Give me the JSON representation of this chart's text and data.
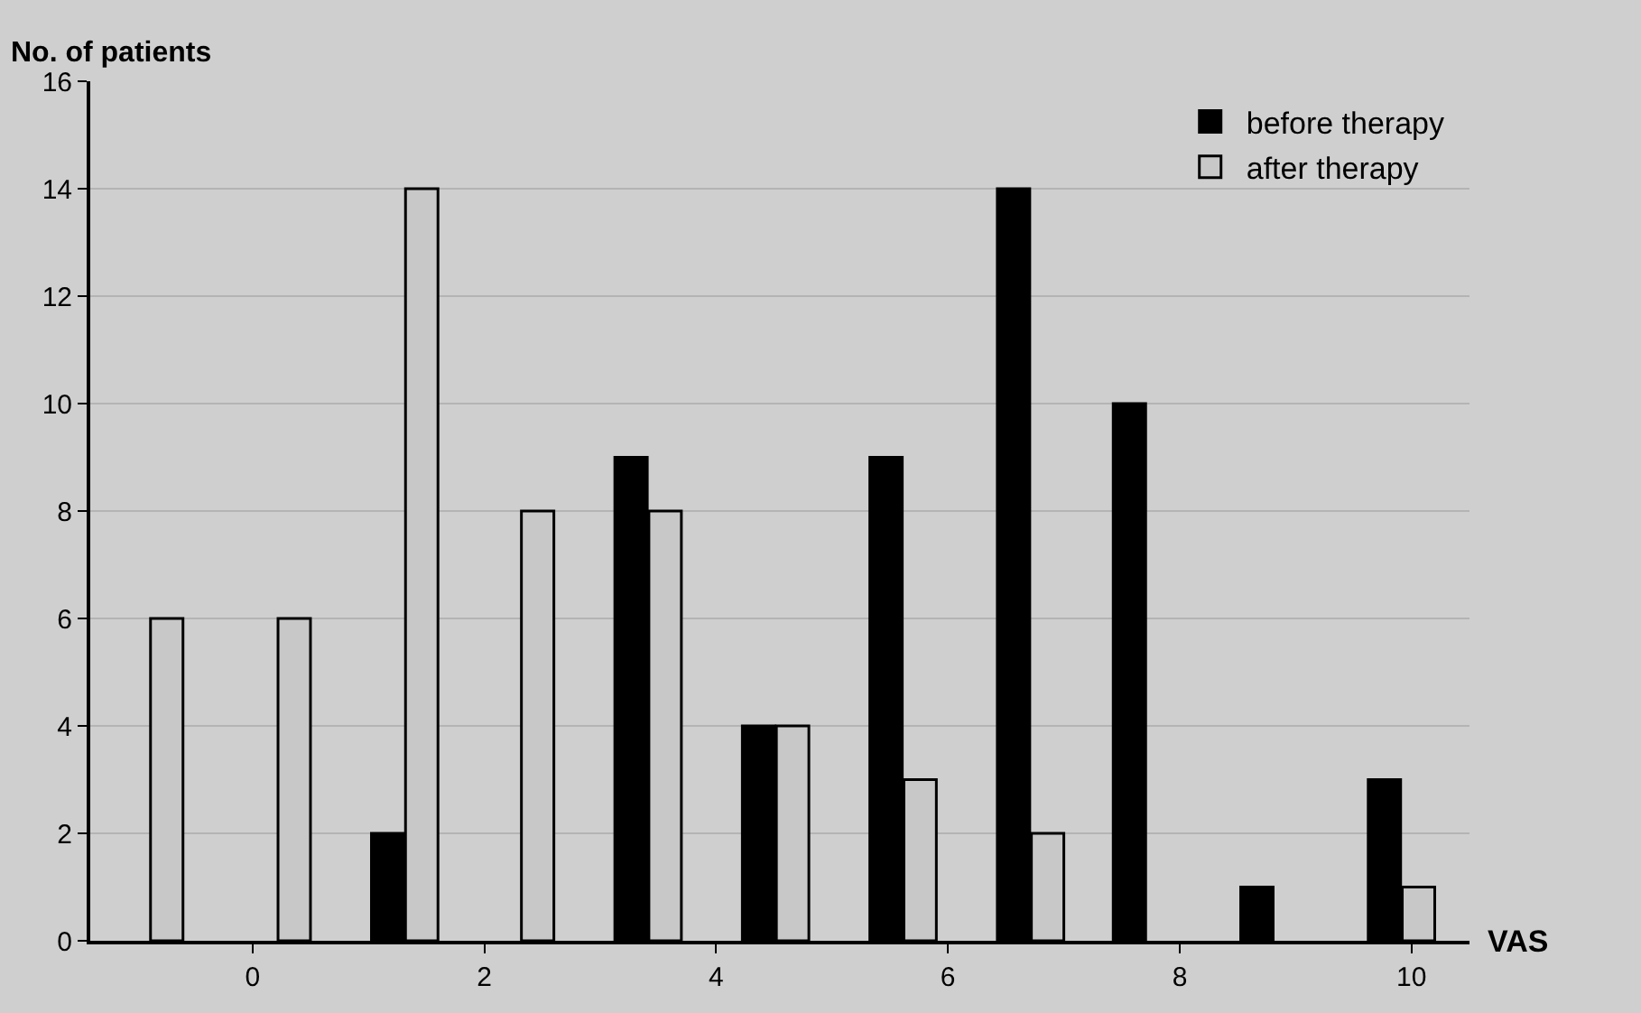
{
  "chart_data": {
    "type": "bar",
    "xlabel": "VAS",
    "ylabel": "No. of patients",
    "x": [
      -0.9,
      0.2,
      1.3,
      2.3,
      3.4,
      4.5,
      5.6,
      6.7,
      7.7,
      8.8,
      9.9
    ],
    "series": [
      {
        "name": "before therapy",
        "color": "#000000",
        "values": [
          null,
          null,
          2,
          null,
          9,
          4,
          9,
          14,
          10,
          1,
          3
        ]
      },
      {
        "name": "after therapy",
        "color": "#c8c8c8",
        "values": [
          6,
          6,
          14,
          8,
          8,
          4,
          3,
          2,
          null,
          null,
          1
        ]
      }
    ],
    "xlim": [
      -1.4,
      10.5
    ],
    "xticks": [
      0,
      2,
      4,
      6,
      8,
      10
    ],
    "ylim": [
      0,
      16
    ],
    "yticks": [
      0,
      2,
      4,
      6,
      8,
      10,
      12,
      14,
      16
    ],
    "grid": "y",
    "legend": "top right"
  }
}
